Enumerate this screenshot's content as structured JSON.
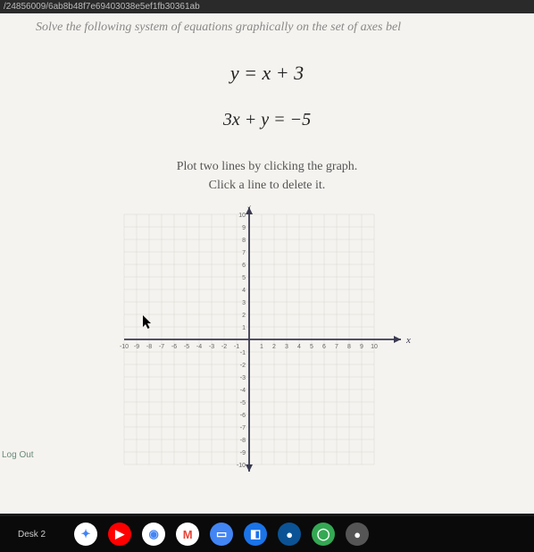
{
  "url": "/24856009/6ab8b48f7e69403038e5ef1fb30361ab",
  "instruction": "Solve the following system of equations graphically on the set of axes bel",
  "equation1": "y = x + 3",
  "equation2": "3x + y = −5",
  "sub_instruction_line1": "Plot two lines by clicking the graph.",
  "sub_instruction_line2": "Click a line to delete it.",
  "graph": {
    "type": "cartesian-grid",
    "xlim": [
      -10,
      10
    ],
    "ylim": [
      -10,
      10
    ],
    "tick_step": 1,
    "x_axis_label": "x",
    "y_axis_label": "y",
    "grid_color": "#d8d6d0",
    "axis_color": "#3a3a50",
    "background_color": "#f5f3ef",
    "tick_label_color": "#666",
    "tick_fontsize": 7,
    "y_tick_labels_shown": [
      1,
      2,
      3,
      4,
      5,
      6,
      7,
      8,
      9,
      10,
      -1,
      -2,
      -3,
      -4,
      -5,
      -6,
      -7,
      -8,
      -9,
      -10
    ],
    "x_tick_labels_shown": [
      -10,
      -9,
      -8,
      -7,
      -6,
      -5,
      -4,
      -3,
      -2,
      -1,
      1,
      2,
      3,
      4,
      5,
      6,
      7,
      8,
      9,
      10
    ]
  },
  "logout_label": "Log Out",
  "taskbar": {
    "desk_label": "Desk 2",
    "icons": [
      {
        "name": "plus-icon",
        "bg": "#ffffff",
        "fg": "#4285f4",
        "glyph": "✦"
      },
      {
        "name": "youtube-icon",
        "bg": "#ff0000",
        "fg": "#ffffff",
        "glyph": "▶"
      },
      {
        "name": "chrome-icon",
        "bg": "#ffffff",
        "fg": "#4285f4",
        "glyph": "◉"
      },
      {
        "name": "gmail-icon",
        "bg": "#ffffff",
        "fg": "#ea4335",
        "glyph": "M"
      },
      {
        "name": "docs-icon",
        "bg": "#4285f4",
        "fg": "#ffffff",
        "glyph": "▭"
      },
      {
        "name": "app-icon-1",
        "bg": "#1a73e8",
        "fg": "#ffffff",
        "glyph": "◧"
      },
      {
        "name": "app-icon-2",
        "bg": "#0b5394",
        "fg": "#ffffff",
        "glyph": "●"
      },
      {
        "name": "app-icon-3",
        "bg": "#34a853",
        "fg": "#ffffff",
        "glyph": "◯"
      },
      {
        "name": "app-icon-4",
        "bg": "#555555",
        "fg": "#ffffff",
        "glyph": "●"
      }
    ]
  }
}
